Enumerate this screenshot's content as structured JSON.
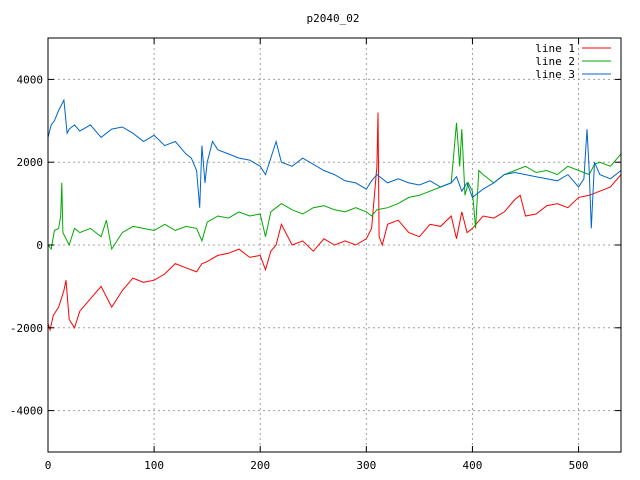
{
  "chart_data": {
    "type": "line",
    "title": "p2040_02",
    "xlabel": "",
    "ylabel": "",
    "xlim": [
      0,
      540
    ],
    "ylim": [
      -5000,
      5000
    ],
    "x_ticks": [
      0,
      100,
      200,
      300,
      400,
      500
    ],
    "y_ticks": [
      -4000,
      -2000,
      0,
      2000,
      4000
    ],
    "grid": true,
    "legend_position": "top-right",
    "series": [
      {
        "name": "line 1",
        "color": "#ff0000",
        "x": [
          0,
          2,
          5,
          10,
          15,
          17,
          20,
          25,
          30,
          40,
          50,
          60,
          70,
          80,
          90,
          100,
          110,
          120,
          130,
          140,
          145,
          150,
          160,
          170,
          180,
          190,
          200,
          205,
          210,
          215,
          220,
          230,
          240,
          250,
          260,
          270,
          280,
          290,
          300,
          305,
          310,
          311,
          312,
          315,
          320,
          330,
          340,
          350,
          360,
          370,
          380,
          385,
          390,
          395,
          400,
          410,
          420,
          430,
          440,
          445,
          450,
          460,
          470,
          480,
          490,
          500,
          510,
          520,
          530,
          540
        ],
        "y": [
          -1900,
          -2050,
          -1700,
          -1500,
          -1100,
          -850,
          -1800,
          -2000,
          -1600,
          -1300,
          -1000,
          -1500,
          -1100,
          -800,
          -900,
          -850,
          -700,
          -450,
          -550,
          -650,
          -450,
          -400,
          -250,
          -200,
          -100,
          -300,
          -250,
          -600,
          -150,
          0,
          500,
          0,
          100,
          -150,
          150,
          0,
          100,
          0,
          150,
          400,
          1900,
          3200,
          200,
          0,
          500,
          600,
          300,
          200,
          500,
          450,
          700,
          150,
          800,
          300,
          400,
          700,
          650,
          800,
          1100,
          1200,
          700,
          750,
          950,
          1000,
          900,
          1150,
          1200,
          1300,
          1400,
          1700
        ]
      },
      {
        "name": "line 2",
        "color": "#00aa00",
        "x": [
          0,
          3,
          6,
          10,
          12,
          13,
          14,
          18,
          20,
          25,
          30,
          40,
          50,
          55,
          60,
          70,
          80,
          90,
          100,
          110,
          120,
          130,
          140,
          145,
          150,
          160,
          170,
          180,
          190,
          200,
          205,
          210,
          215,
          220,
          230,
          240,
          250,
          260,
          270,
          280,
          290,
          300,
          305,
          310,
          320,
          330,
          340,
          350,
          360,
          370,
          380,
          385,
          388,
          390,
          393,
          396,
          400,
          403,
          406,
          410,
          420,
          430,
          440,
          450,
          460,
          470,
          480,
          490,
          500,
          510,
          515,
          520,
          530,
          540
        ],
        "y": [
          0,
          -100,
          350,
          400,
          700,
          1500,
          300,
          100,
          0,
          400,
          300,
          400,
          200,
          600,
          -100,
          300,
          450,
          400,
          350,
          500,
          350,
          450,
          400,
          100,
          550,
          700,
          650,
          800,
          700,
          750,
          200,
          800,
          900,
          1000,
          850,
          750,
          900,
          950,
          850,
          800,
          900,
          800,
          700,
          850,
          900,
          1000,
          1150,
          1200,
          1300,
          1400,
          1500,
          2950,
          1900,
          2800,
          1200,
          1500,
          1300,
          400,
          1800,
          1700,
          1500,
          1700,
          1800,
          1900,
          1750,
          1800,
          1700,
          1900,
          1800,
          1700,
          1950,
          2000,
          1900,
          2200
        ]
      },
      {
        "name": "line 3",
        "color": "#0066cc",
        "x": [
          0,
          3,
          6,
          10,
          15,
          18,
          20,
          25,
          30,
          40,
          50,
          60,
          70,
          80,
          90,
          100,
          110,
          120,
          130,
          135,
          140,
          143,
          145,
          148,
          150,
          155,
          160,
          170,
          180,
          190,
          200,
          205,
          210,
          215,
          220,
          230,
          240,
          250,
          260,
          270,
          280,
          290,
          300,
          305,
          310,
          320,
          330,
          340,
          350,
          360,
          370,
          380,
          385,
          390,
          395,
          400,
          410,
          420,
          430,
          440,
          450,
          460,
          470,
          480,
          490,
          500,
          505,
          508,
          510,
          512,
          515,
          520,
          530,
          540
        ],
        "y": [
          2600,
          2900,
          3000,
          3250,
          3500,
          2700,
          2800,
          2900,
          2750,
          2900,
          2600,
          2800,
          2850,
          2700,
          2500,
          2650,
          2400,
          2500,
          2200,
          2100,
          1800,
          900,
          2400,
          1500,
          2000,
          2500,
          2300,
          2200,
          2100,
          2050,
          1900,
          1700,
          2100,
          2500,
          2000,
          1900,
          2100,
          1950,
          1800,
          1700,
          1550,
          1500,
          1350,
          1550,
          1700,
          1500,
          1600,
          1500,
          1450,
          1550,
          1400,
          1500,
          1650,
          1300,
          1500,
          1150,
          1350,
          1500,
          1700,
          1750,
          1700,
          1650,
          1600,
          1550,
          1700,
          1400,
          1600,
          2800,
          1800,
          400,
          2000,
          1700,
          1600,
          1800
        ]
      }
    ]
  }
}
